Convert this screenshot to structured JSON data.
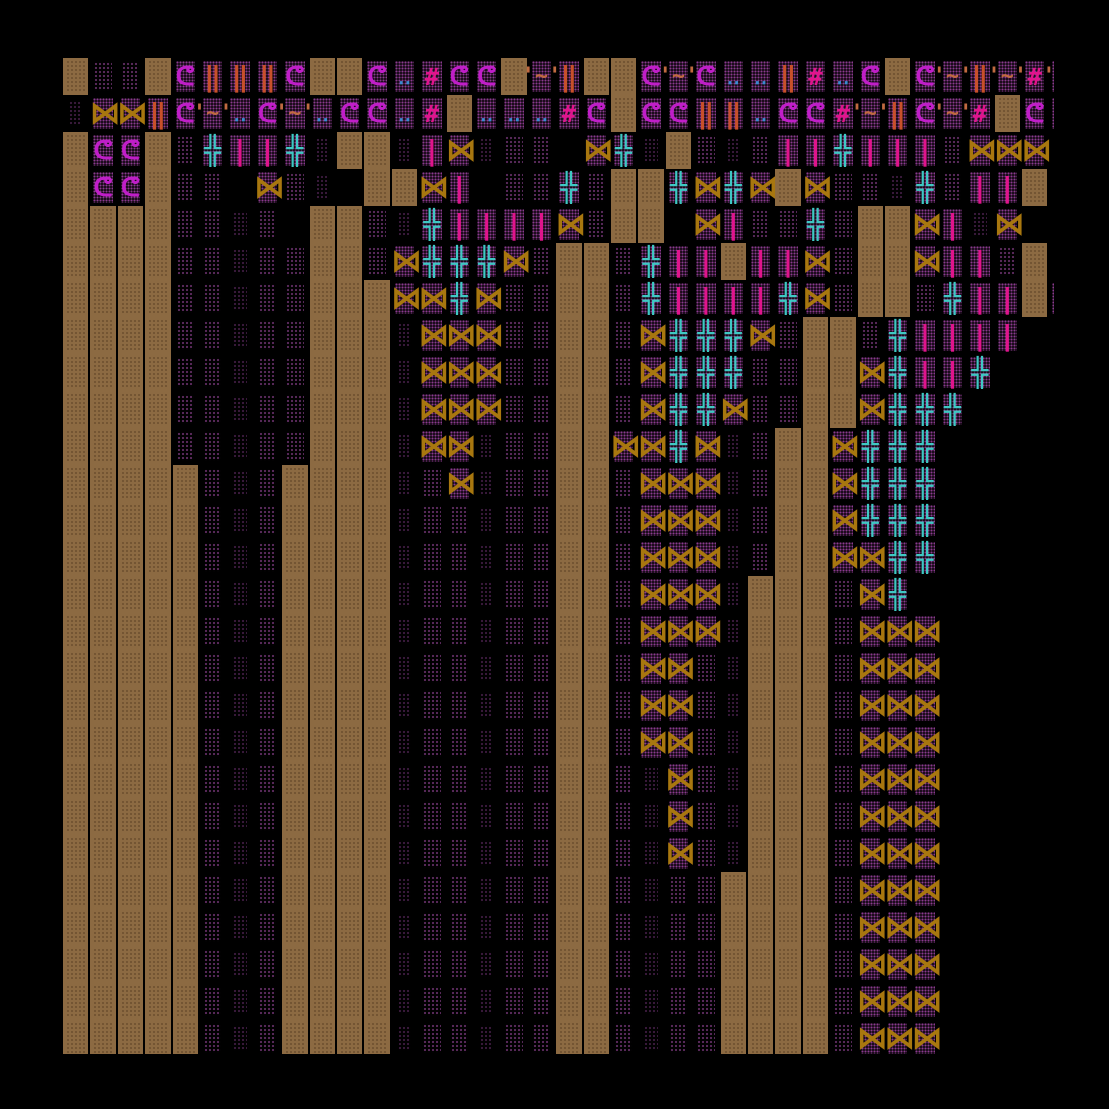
{
  "map": {
    "legend": {
      "solid": "rock wall tile",
      "floor": "cave floor tile",
      "floor2": "lit floor tile",
      "dim": "dark floor tile",
      "void": "unexplored",
      "X": "bowtie-glyph",
      "+": "double-cross-glyph",
      "|": "bar-glyph",
      "e": "eye-glyph",
      "#": "hash-glyph",
      ".": "dots-glyph",
      "~": "tilde-glyph",
      "H": "double-bar-glyph"
    },
    "glyphs": {
      "X": "⋈",
      "+": "╬",
      "|": "|",
      "e": "ᕦ",
      "#": "#",
      ".": "‥",
      "~": "'~'",
      "H": "‖"
    },
    "colors": {
      "wall": "#8c6a42",
      "bowtie": "#a8770f",
      "cross": "#3fc8c4",
      "bar": "#e0148c",
      "eye": "#c01ec8",
      "background": "#000000"
    },
    "rows": [
      "SffSeHHHeSSe.#eeS~HSSe~e..H#.eSe~H~#~",
      "fXXHe~.e~.ee.#S...#eSeeHH.ee#~He~#Se#.",
      "SeeSf+||+fSSf|Xfff X+fSfff||+|||fXXXf+",
      "SeeSff Xff SSX| ff+fSS+X+XSXfff+f||Sf",
      "SSSSffff SSff+||||XfSS X|ff+fSSX|fX",
      "SSSSfffffSSfX+++XfSSf+||S||XfSSX||fS",
      "SSSSfffffSSSXX+XffSSf+||||+XfSSf+||S|",
      "SSSSfffffSSSfXXXffSSfX+++XfSSf+||||",
      "SSSSfffffSSSfXXXffSSfX+++ffSSX+||+",
      "SSSSfffffSSSfXXXffSSfX++XffSSX+++",
      "SSSSfffffSSSfXXfffSSXX+XffSSX+++",
      "SSSSSfffSSSSffXfffSSfXXXffSSX+++",
      "SSSSSfffSSSSffffffSSfXXXffSSX+++",
      "SSSSSfffSSSSffffffSSfXXXffSSXX++",
      "SSSSSfffSSSSffffffSSfXXXfSSSfX+",
      "SSSSSfffSSSSffffffSSfXXXfSSSfXXX",
      "SSSSSfffSSSSffffffSSfXXffSSSfXXX",
      "SSSSSfffSSSSffffffSSfXXffSSSfXXX",
      "SSSSSfffSSSSffffffSSfXXffSSSfXXX",
      "SSSSSfffSSSSffffffSSffXffSSSfXXX",
      "SSSSSfffSSSSffffffSSffXffSSSfXXX",
      "SSSSSfffSSSSffffffSSffXffSSSfXXX",
      "SSSSSfffSSSSffffffSSffffSSSSfXXX",
      "SSSSSfffSSSSffffffSSffffSSSSfXXX",
      "SSSSSfffSSSSffffffSSffffSSSSfXXX",
      "SSSSSfffSSSSffffffSSffffSSSSfXXX",
      "SSSSSfffSSSSffffffSSffffSSSSfXXX"
    ]
  }
}
